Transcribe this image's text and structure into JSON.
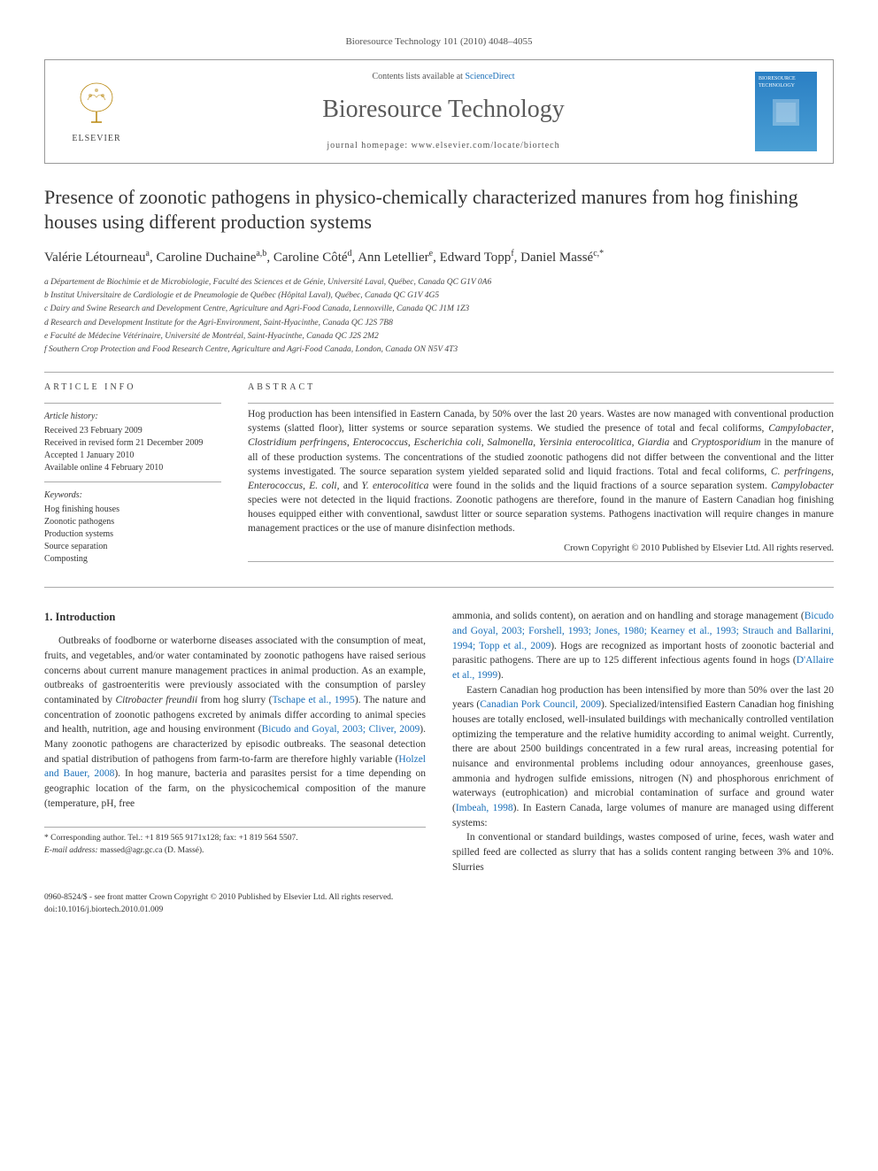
{
  "header": {
    "citation": "Bioresource Technology 101 (2010) 4048–4055"
  },
  "journal_box": {
    "contents_prefix": "Contents lists available at ",
    "contents_link": "ScienceDirect",
    "journal_name": "Bioresource Technology",
    "homepage_prefix": "journal homepage: ",
    "homepage": "www.elsevier.com/locate/biortech",
    "publisher": "ELSEVIER",
    "cover_text": "BIORESOURCE TECHNOLOGY"
  },
  "article": {
    "title": "Presence of zoonotic pathogens in physico-chemically characterized manures from hog finishing houses using different production systems",
    "authors_html": "Valérie Létourneau<sup>a</sup>, Caroline Duchaine<sup>a,b</sup>, Caroline Côté<sup>d</sup>, Ann Letellier<sup>e</sup>, Edward Topp<sup>f</sup>, Daniel Massé<sup>c,*</sup>",
    "affiliations": [
      "a Département de Biochimie et de Microbiologie, Faculté des Sciences et de Génie, Université Laval, Québec, Canada QC G1V 0A6",
      "b Institut Universitaire de Cardiologie et de Pneumologie de Québec (Hôpital Laval), Québec, Canada QC G1V 4G5",
      "c Dairy and Swine Research and Development Centre, Agriculture and Agri-Food Canada, Lennoxville, Canada QC J1M 1Z3",
      "d Research and Development Institute for the Agri-Environment, Saint-Hyacinthe, Canada QC J2S 7B8",
      "e Faculté de Médecine Vétérinaire, Université de Montréal, Saint-Hyacinthe, Canada QC J2S 2M2",
      "f Southern Crop Protection and Food Research Centre, Agriculture and Agri-Food Canada, London, Canada ON N5V 4T3"
    ]
  },
  "article_info": {
    "heading": "ARTICLE INFO",
    "history_label": "Article history:",
    "history": [
      "Received 23 February 2009",
      "Received in revised form 21 December 2009",
      "Accepted 1 January 2010",
      "Available online 4 February 2010"
    ],
    "keywords_label": "Keywords:",
    "keywords": [
      "Hog finishing houses",
      "Zoonotic pathogens",
      "Production systems",
      "Source separation",
      "Composting"
    ]
  },
  "abstract": {
    "heading": "ABSTRACT",
    "text_html": "Hog production has been intensified in Eastern Canada, by 50% over the last 20 years. Wastes are now managed with conventional production systems (slatted floor), litter systems or source separation systems. We studied the presence of total and fecal coliforms, <em>Campylobacter</em>, <em>Clostridium perfringens</em>, <em>Enterococcus</em>, <em>Escherichia coli</em>, <em>Salmonella</em>, <em>Yersinia enterocolitica</em>, <em>Giardia</em> and <em>Cryptosporidium</em> in the manure of all of these production systems. The concentrations of the studied zoonotic pathogens did not differ between the conventional and the litter systems investigated. The source separation system yielded separated solid and liquid fractions. Total and fecal coliforms, <em>C. perfringens</em>, <em>Enterococcus</em>, <em>E. coli</em>, and <em>Y. enterocolitica</em> were found in the solids and the liquid fractions of a source separation system. <em>Campylobacter</em> species were not detected in the liquid fractions. Zoonotic pathogens are therefore, found in the manure of Eastern Canadian hog finishing houses equipped either with conventional, sawdust litter or source separation systems. Pathogens inactivation will require changes in manure management practices or the use of manure disinfection methods.",
    "copyright": "Crown Copyright © 2010 Published by Elsevier Ltd. All rights reserved."
  },
  "body": {
    "section_heading": "1. Introduction",
    "col1_html": "Outbreaks of foodborne or waterborne diseases associated with the consumption of meat, fruits, and vegetables, and/or water contaminated by zoonotic pathogens have raised serious concerns about current manure management practices in animal production. As an example, outbreaks of gastroenteritis were previously associated with the consumption of parsley contaminated by <em>Citrobacter freundii</em> from hog slurry (<span class=\"ref-link\">Tschape et al., 1995</span>). The nature and concentration of zoonotic pathogens excreted by animals differ according to animal species and health, nutrition, age and housing environment (<span class=\"ref-link\">Bicudo and Goyal, 2003; Cliver, 2009</span>). Many zoonotic pathogens are characterized by episodic outbreaks. The seasonal detection and spatial distribution of pathogens from farm-to-farm are therefore highly variable (<span class=\"ref-link\">Holzel and Bauer, 2008</span>). In hog manure, bacteria and parasites persist for a time depending on geographic location of the farm, on the physicochemical composition of the manure (temperature, pH, free",
    "col2_p1_html": "ammonia, and solids content), on aeration and on handling and storage management (<span class=\"ref-link\">Bicudo and Goyal, 2003; Forshell, 1993; Jones, 1980; Kearney et al., 1993; Strauch and Ballarini, 1994; Topp et al., 2009</span>). Hogs are recognized as important hosts of zoonotic bacterial and parasitic pathogens. There are up to 125 different infectious agents found in hogs (<span class=\"ref-link\">D'Allaire et al., 1999</span>).",
    "col2_p2_html": "Eastern Canadian hog production has been intensified by more than 50% over the last 20 years (<span class=\"ref-link\">Canadian Pork Council, 2009</span>). Specialized/intensified Eastern Canadian hog finishing houses are totally enclosed, well-insulated buildings with mechanically controlled ventilation optimizing the temperature and the relative humidity according to animal weight. Currently, there are about 2500 buildings concentrated in a few rural areas, increasing potential for nuisance and environmental problems including odour annoyances, greenhouse gases, ammonia and hydrogen sulfide emissions, nitrogen (N) and phosphorous enrichment of waterways (eutrophication) and microbial contamination of surface and ground water (<span class=\"ref-link\">Imbeah, 1998</span>). In Eastern Canada, large volumes of manure are managed using different systems:",
    "col2_p3_html": "In conventional or standard buildings, wastes composed of urine, feces, wash water and spilled feed are collected as slurry that has a solids content ranging between 3% and 10%. Slurries"
  },
  "footnote": {
    "corresponding": "* Corresponding author. Tel.: +1 819 565 9171x128; fax: +1 819 564 5507.",
    "email_label": "E-mail address:",
    "email": "massed@agr.gc.ca",
    "email_name": "(D. Massé)."
  },
  "footer": {
    "line1": "0960-8524/$ - see front matter Crown Copyright © 2010 Published by Elsevier Ltd. All rights reserved.",
    "line2": "doi:10.1016/j.biortech.2010.01.009"
  },
  "colors": {
    "link": "#1a6fb8",
    "text": "#333333",
    "border": "#999999",
    "cover_bg": "#2a7fc4"
  }
}
